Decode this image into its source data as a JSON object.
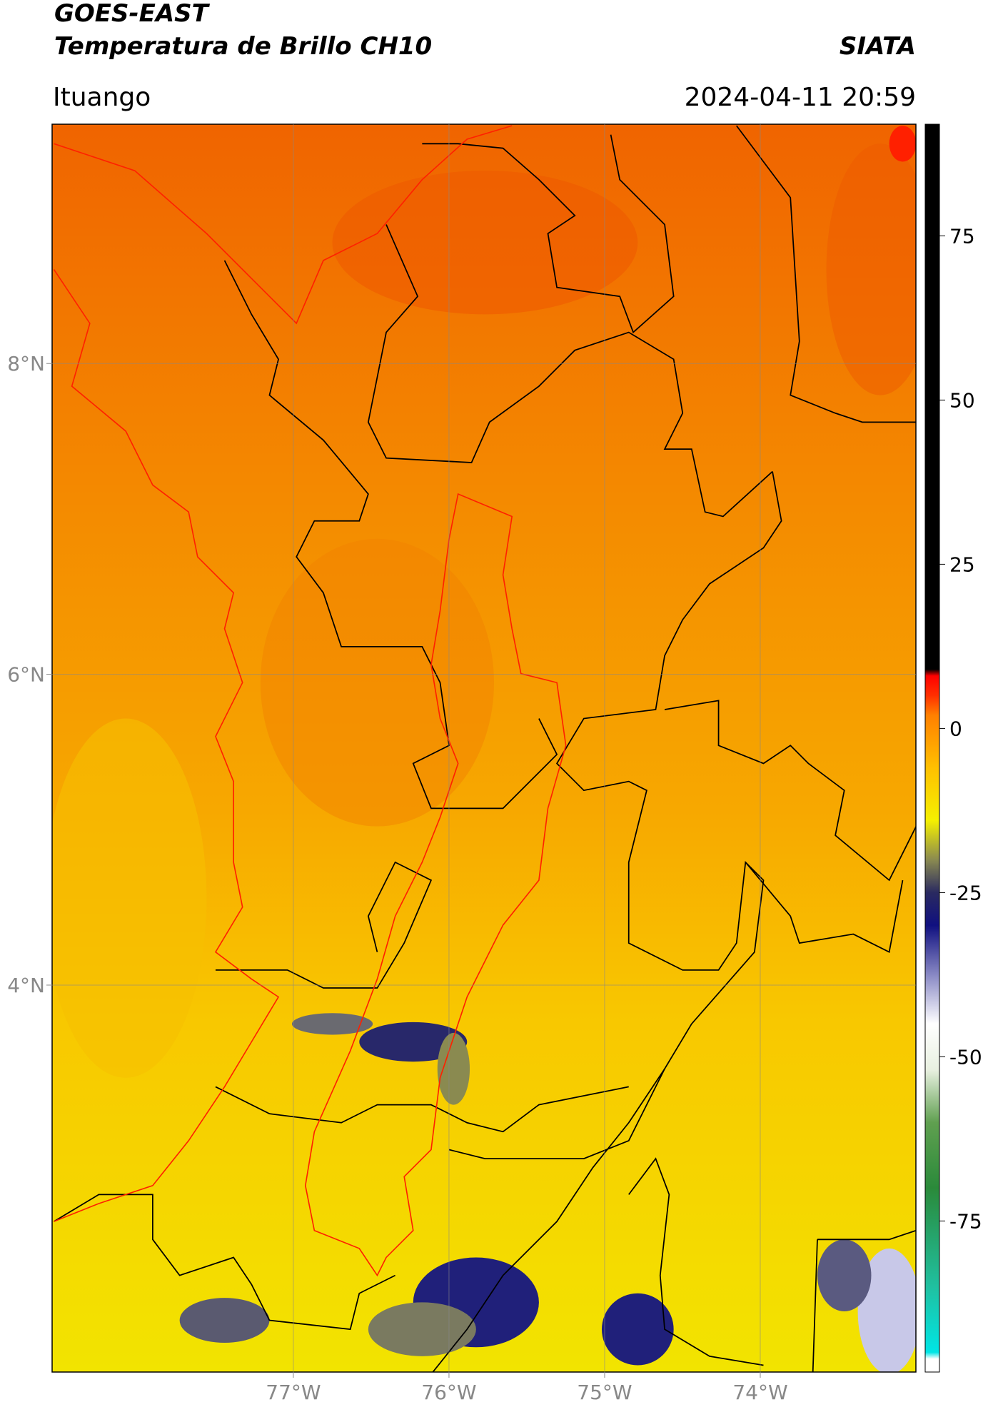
{
  "header": {
    "source": "GOES-EAST",
    "product": "Temperatura de Brillo CH10",
    "org": "SIATA",
    "location": "Ituango",
    "datetime": "2024-04-11 20:59"
  },
  "map": {
    "lonlim": [
      -78.55,
      -73.0
    ],
    "latlim": [
      1.51,
      9.54
    ],
    "lon_ticks": [
      {
        "value": -77,
        "label": "77°W"
      },
      {
        "value": -76,
        "label": "76°W"
      },
      {
        "value": -75,
        "label": "75°W"
      },
      {
        "value": -74,
        "label": "74°W"
      }
    ],
    "lat_ticks": [
      {
        "value": 8,
        "label": "8°N"
      },
      {
        "value": 6,
        "label": "6°N"
      },
      {
        "value": 4,
        "label": "4°N"
      }
    ]
  },
  "colorbar": {
    "clim": [
      -98,
      92
    ],
    "ticks": [
      75,
      50,
      25,
      0,
      -25,
      -50,
      -75
    ],
    "colormap": [
      {
        "value": -98,
        "color": "#ffffff"
      },
      {
        "value": -96,
        "color": "#ffffff"
      },
      {
        "value": -95,
        "color": "#00e5e5"
      },
      {
        "value": -85,
        "color": "#20c0a0"
      },
      {
        "value": -70,
        "color": "#2a8a3a"
      },
      {
        "value": -60,
        "color": "#60a050"
      },
      {
        "value": -52,
        "color": "#e8f0e0"
      },
      {
        "value": -45,
        "color": "#ffffff"
      },
      {
        "value": -38,
        "color": "#9090c8"
      },
      {
        "value": -30,
        "color": "#101080"
      },
      {
        "value": -25,
        "color": "#2a2a60"
      },
      {
        "value": -20,
        "color": "#8a8a50"
      },
      {
        "value": -14,
        "color": "#f5f000"
      },
      {
        "value": -6,
        "color": "#ffc000"
      },
      {
        "value": 2,
        "color": "#ff8000"
      },
      {
        "value": 5,
        "color": "#ff3000"
      },
      {
        "value": 8,
        "color": "#ff0000"
      },
      {
        "value": 9,
        "color": "#000000"
      },
      {
        "value": 92,
        "color": "#000000"
      }
    ]
  }
}
